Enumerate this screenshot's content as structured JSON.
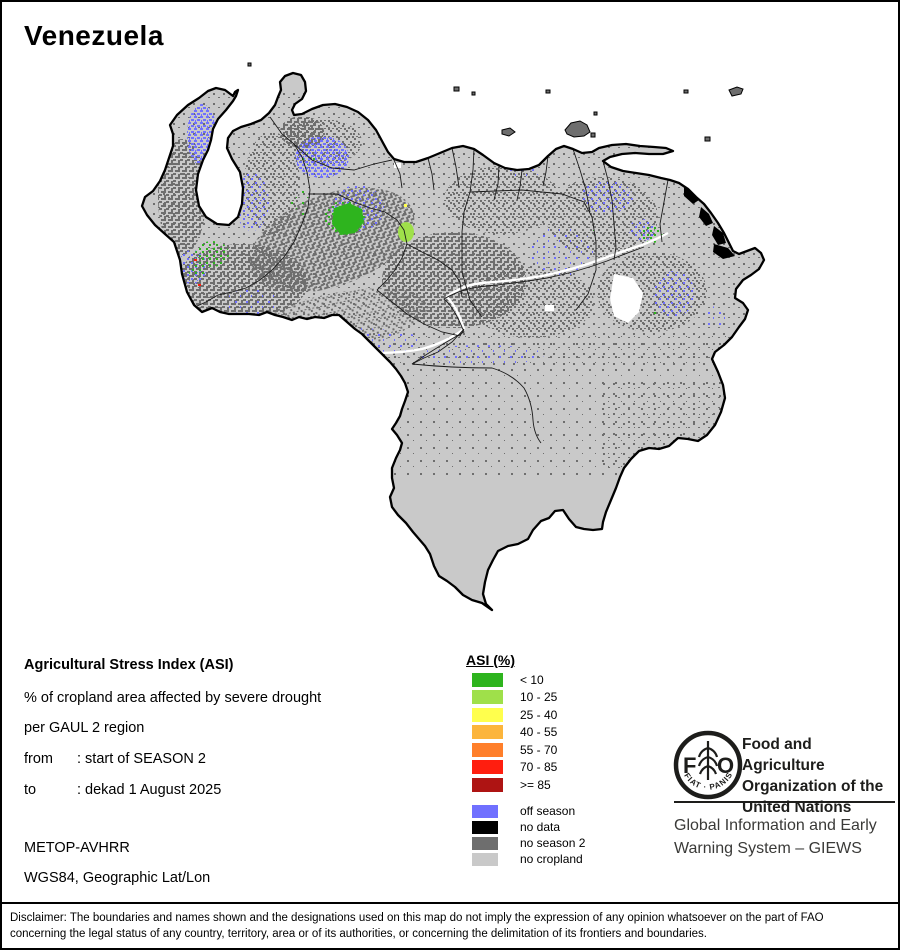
{
  "page": {
    "title": "Venezuela"
  },
  "map": {
    "country": "Venezuela",
    "water_color": "#ffffff",
    "boundary_color": "#000000",
    "river_color": "#ffffff"
  },
  "info": {
    "heading": "Agricultural Stress Index (ASI)",
    "line1": "% of cropland area affected by severe drought",
    "line2": "per GAUL 2 region",
    "from_label": "from",
    "from_value": ": start of SEASON 2",
    "to_label": "to",
    "to_value": ": dekad 1 August 2025",
    "sensor": "METOP-AVHRR",
    "projection": "WGS84, Geographic Lat/Lon"
  },
  "asi_legend": {
    "title": "ASI (%)",
    "classes": [
      {
        "label": "< 10",
        "color": "#2eb41e"
      },
      {
        "label": "10 - 25",
        "color": "#9fe04a"
      },
      {
        "label": "25 - 40",
        "color": "#ffff4d"
      },
      {
        "label": "40 - 55",
        "color": "#fcb53c"
      },
      {
        "label": "55 - 70",
        "color": "#ff7f2a"
      },
      {
        "label": "70 - 85",
        "color": "#ff1e0f"
      },
      {
        "label": ">= 85",
        "color": "#ae1413"
      }
    ],
    "extras": [
      {
        "label": "off season",
        "color": "#7070ff"
      },
      {
        "label": "no data",
        "color": "#000000"
      },
      {
        "label": "no season 2",
        "color": "#6e6e6e"
      },
      {
        "label": "no cropland",
        "color": "#c9c9c9"
      }
    ]
  },
  "fao": {
    "logo_text": "FAO",
    "logo_motto": "FIAT · PANIS",
    "org_line1": "Food and Agriculture",
    "org_line2": "Organization of the",
    "org_line3": "United Nations",
    "giews_line1": "Global Information and Early",
    "giews_line2": "Warning System – GIEWS"
  },
  "disclaimer": {
    "line1": "Disclaimer: The boundaries and names shown and the designations used on this map do not imply the expression of any opinion whatsoever on the part of FAO",
    "line2": "concerning the legal status of any country, territory, area or of its authorities, or concerning the delimitation of its frontiers and boundaries."
  }
}
